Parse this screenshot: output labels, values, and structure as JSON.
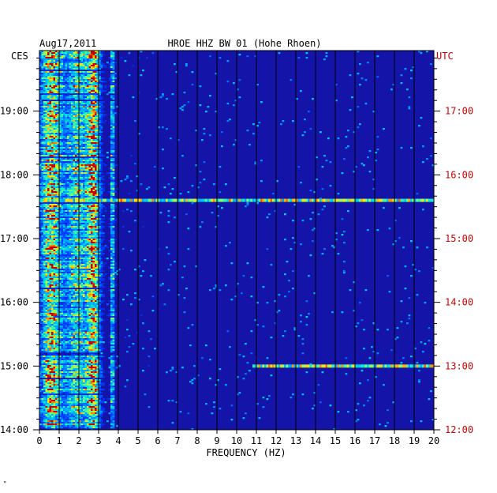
{
  "header": {
    "date": "Aug17,2011",
    "station": "HROE HHZ BW 01 (Hohe Rhoen)",
    "left_tz": "CES",
    "right_tz": "UTC"
  },
  "chart_data": {
    "type": "heatmap",
    "title": "HROE HHZ BW 01 (Hohe Rhoen)",
    "date": "Aug17,2011",
    "xlabel": "FREQUENCY (HZ)",
    "ylabel_left": "CES",
    "ylabel_right": "UTC",
    "x_ticks": [
      0,
      1,
      2,
      3,
      4,
      5,
      6,
      7,
      8,
      9,
      10,
      11,
      12,
      13,
      14,
      15,
      16,
      17,
      18,
      19,
      20
    ],
    "xlim": [
      0,
      20
    ],
    "left_ticks": [
      "14:00",
      "15:00",
      "16:00",
      "17:00",
      "18:00",
      "19:00"
    ],
    "right_ticks": [
      "12:00",
      "13:00",
      "14:00",
      "15:00",
      "16:00",
      "17:00"
    ],
    "time_range_ces_hours": [
      14.0,
      19.95
    ],
    "colors": {
      "background": "#1414a8",
      "grid": "#000000",
      "left_labels": "#000000",
      "right_labels": "#cc0000"
    },
    "energy_bands_hz": [
      {
        "center": 0.6,
        "width": 0.8,
        "intensity": "high"
      },
      {
        "center": 1.9,
        "width": 0.9,
        "intensity": "medium"
      },
      {
        "center": 2.75,
        "width": 0.5,
        "intensity": "high"
      },
      {
        "center": 3.7,
        "width": 0.15,
        "intensity": "medium"
      }
    ],
    "broadband_events_ces": [
      {
        "time": "17:36",
        "f_from": 0,
        "f_to": 20
      },
      {
        "time": "15:00",
        "f_from": 10.8,
        "f_to": 20
      }
    ]
  }
}
